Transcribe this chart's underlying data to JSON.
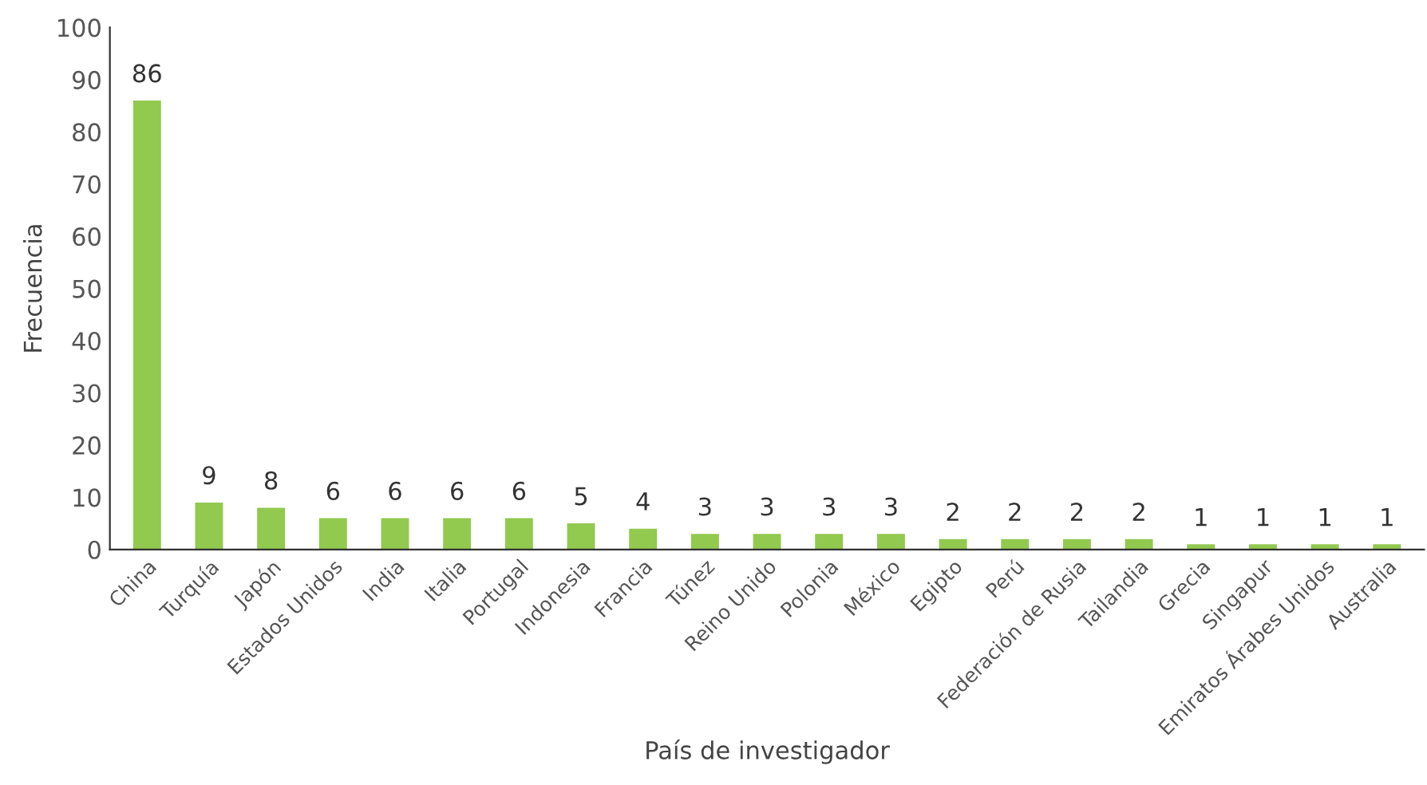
{
  "chart_data": {
    "type": "bar",
    "xlabel": "País de investigador",
    "ylabel": "Frecuencia",
    "categories": [
      "China",
      "Turquía",
      "Japón",
      "Estados Unidos",
      "India",
      "Italia",
      "Portugal",
      "Indonesia",
      "Francia",
      "Túnez",
      "Reino Unido",
      "Polonia",
      "México",
      "Egipto",
      "Perú",
      "Federación de Rusia",
      "Tailandia",
      "Grecia",
      "Singapur",
      "Emiratos Árabes Unidos",
      "Australia"
    ],
    "values": [
      86,
      9,
      8,
      6,
      6,
      6,
      6,
      5,
      4,
      3,
      3,
      3,
      3,
      2,
      2,
      2,
      2,
      1,
      1,
      1,
      1
    ],
    "color": "#92c94f",
    "ylim": [
      0,
      100
    ],
    "yticks": [
      0,
      10,
      20,
      30,
      40,
      50,
      60,
      70,
      80,
      90,
      100
    ],
    "grid": false,
    "data_labels": true
  }
}
